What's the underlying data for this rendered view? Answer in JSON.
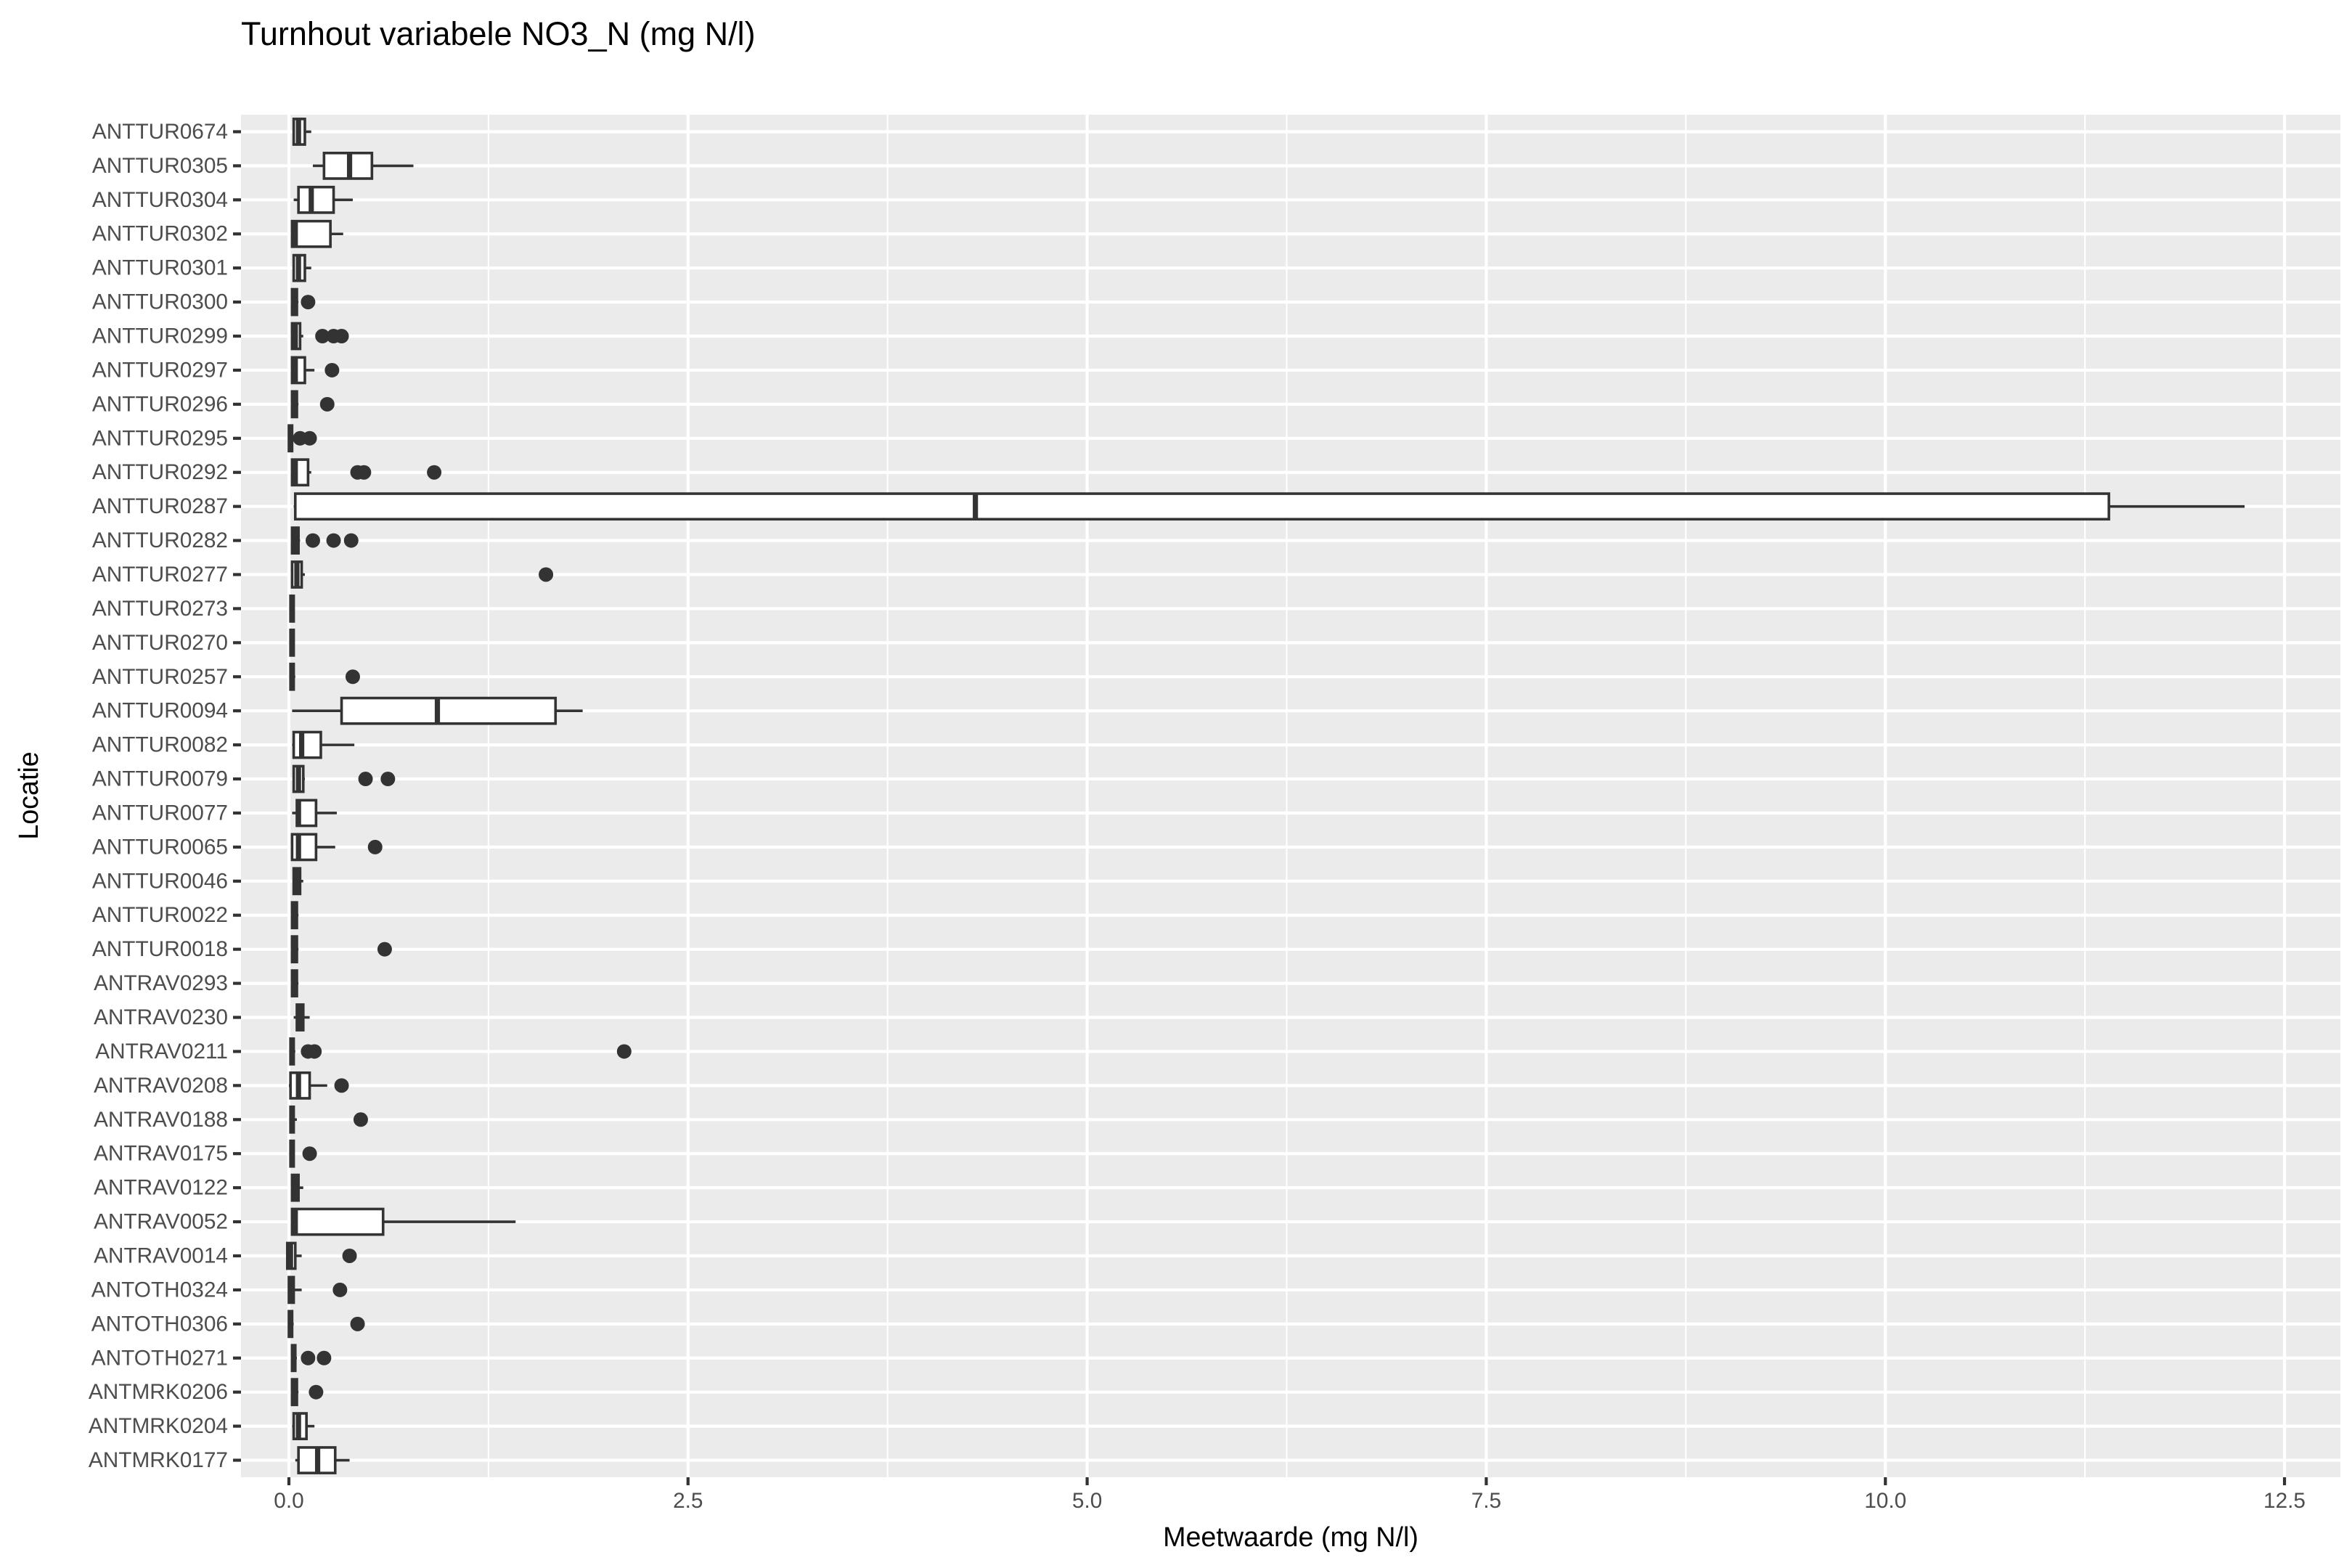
{
  "chart_data": {
    "type": "boxplot",
    "title": "Turnhout variabele NO3_N (mg N/l)",
    "xlabel": "Meetwaarde (mg N/l)",
    "ylabel": "Locatie",
    "xlim": [
      -0.3,
      12.85
    ],
    "xticks": [
      0.0,
      2.5,
      5.0,
      7.5,
      10.0,
      12.5
    ],
    "xtick_labels": [
      "0.0",
      "2.5",
      "5.0",
      "7.5",
      "10.0",
      "12.5"
    ],
    "grid": true,
    "colors": {
      "panel": "#EBEBEB",
      "grid": "#FFFFFF",
      "box_line": "#333333",
      "box_fill": "#FFFFFF"
    },
    "categories": [
      "ANTTUR0674",
      "ANTTUR0305",
      "ANTTUR0304",
      "ANTTUR0302",
      "ANTTUR0301",
      "ANTTUR0300",
      "ANTTUR0299",
      "ANTTUR0297",
      "ANTTUR0296",
      "ANTTUR0295",
      "ANTTUR0292",
      "ANTTUR0287",
      "ANTTUR0282",
      "ANTTUR0277",
      "ANTTUR0273",
      "ANTTUR0270",
      "ANTTUR0257",
      "ANTTUR0094",
      "ANTTUR0082",
      "ANTTUR0079",
      "ANTTUR0077",
      "ANTTUR0065",
      "ANTTUR0046",
      "ANTTUR0022",
      "ANTTUR0018",
      "ANTRAV0293",
      "ANTRAV0230",
      "ANTRAV0211",
      "ANTRAV0208",
      "ANTRAV0188",
      "ANTRAV0175",
      "ANTRAV0122",
      "ANTRAV0052",
      "ANTRAV0014",
      "ANTOTH0324",
      "ANTOTH0306",
      "ANTOTH0271",
      "ANTMRK0206",
      "ANTMRK0204",
      "ANTMRK0177"
    ],
    "boxes": [
      {
        "location": "ANTTUR0674",
        "min": 0.03,
        "q1": 0.03,
        "median": 0.06,
        "q3": 0.1,
        "max": 0.14,
        "outliers": []
      },
      {
        "location": "ANTTUR0305",
        "min": 0.15,
        "q1": 0.22,
        "median": 0.38,
        "q3": 0.52,
        "max": 0.78,
        "outliers": []
      },
      {
        "location": "ANTTUR0304",
        "min": 0.03,
        "q1": 0.06,
        "median": 0.14,
        "q3": 0.28,
        "max": 0.4,
        "outliers": []
      },
      {
        "location": "ANTTUR0302",
        "min": 0.02,
        "q1": 0.02,
        "median": 0.04,
        "q3": 0.26,
        "max": 0.34,
        "outliers": []
      },
      {
        "location": "ANTTUR0301",
        "min": 0.03,
        "q1": 0.03,
        "median": 0.06,
        "q3": 0.1,
        "max": 0.14,
        "outliers": []
      },
      {
        "location": "ANTTUR0300",
        "min": 0.02,
        "q1": 0.02,
        "median": 0.03,
        "q3": 0.05,
        "max": 0.06,
        "outliers": [
          0.12
        ]
      },
      {
        "location": "ANTTUR0299",
        "min": 0.02,
        "q1": 0.02,
        "median": 0.04,
        "q3": 0.07,
        "max": 0.09,
        "outliers": [
          0.21,
          0.28,
          0.33
        ]
      },
      {
        "location": "ANTTUR0297",
        "min": 0.02,
        "q1": 0.02,
        "median": 0.04,
        "q3": 0.1,
        "max": 0.16,
        "outliers": [
          0.27
        ]
      },
      {
        "location": "ANTTUR0296",
        "min": 0.02,
        "q1": 0.02,
        "median": 0.03,
        "q3": 0.05,
        "max": 0.06,
        "outliers": [
          0.24
        ]
      },
      {
        "location": "ANTTUR0295",
        "min": 0.0,
        "q1": 0.0,
        "median": 0.01,
        "q3": 0.02,
        "max": 0.02,
        "outliers": [
          0.07,
          0.13
        ]
      },
      {
        "location": "ANTTUR0292",
        "min": 0.02,
        "q1": 0.02,
        "median": 0.04,
        "q3": 0.12,
        "max": 0.14,
        "outliers": [
          0.43,
          0.47,
          0.91
        ]
      },
      {
        "location": "ANTTUR0287",
        "min": 0.03,
        "q1": 0.04,
        "median": 4.3,
        "q3": 11.4,
        "max": 12.25,
        "outliers": []
      },
      {
        "location": "ANTTUR0282",
        "min": 0.02,
        "q1": 0.02,
        "median": 0.04,
        "q3": 0.06,
        "max": 0.07,
        "outliers": [
          0.15,
          0.28,
          0.39
        ]
      },
      {
        "location": "ANTTUR0277",
        "min": 0.02,
        "q1": 0.02,
        "median": 0.05,
        "q3": 0.08,
        "max": 0.1,
        "outliers": [
          1.61
        ]
      },
      {
        "location": "ANTTUR0273",
        "min": 0.01,
        "q1": 0.01,
        "median": 0.02,
        "q3": 0.03,
        "max": 0.03,
        "outliers": []
      },
      {
        "location": "ANTTUR0270",
        "min": 0.01,
        "q1": 0.01,
        "median": 0.02,
        "q3": 0.03,
        "max": 0.03,
        "outliers": []
      },
      {
        "location": "ANTTUR0257",
        "min": 0.01,
        "q1": 0.01,
        "median": 0.02,
        "q3": 0.03,
        "max": 0.04,
        "outliers": [
          0.4
        ]
      },
      {
        "location": "ANTTUR0094",
        "min": 0.02,
        "q1": 0.33,
        "median": 0.93,
        "q3": 1.67,
        "max": 1.84,
        "outliers": []
      },
      {
        "location": "ANTTUR0082",
        "min": 0.02,
        "q1": 0.03,
        "median": 0.08,
        "q3": 0.2,
        "max": 0.41,
        "outliers": []
      },
      {
        "location": "ANTTUR0079",
        "min": 0.03,
        "q1": 0.03,
        "median": 0.06,
        "q3": 0.09,
        "max": 0.1,
        "outliers": [
          0.48,
          0.62
        ]
      },
      {
        "location": "ANTTUR0077",
        "min": 0.02,
        "q1": 0.05,
        "median": 0.06,
        "q3": 0.17,
        "max": 0.3,
        "outliers": []
      },
      {
        "location": "ANTTUR0065",
        "min": 0.02,
        "q1": 0.02,
        "median": 0.06,
        "q3": 0.17,
        "max": 0.29,
        "outliers": [
          0.54
        ]
      },
      {
        "location": "ANTTUR0046",
        "min": 0.03,
        "q1": 0.03,
        "median": 0.05,
        "q3": 0.07,
        "max": 0.09,
        "outliers": []
      },
      {
        "location": "ANTTUR0022",
        "min": 0.02,
        "q1": 0.02,
        "median": 0.04,
        "q3": 0.05,
        "max": 0.06,
        "outliers": []
      },
      {
        "location": "ANTTUR0018",
        "min": 0.02,
        "q1": 0.02,
        "median": 0.03,
        "q3": 0.05,
        "max": 0.06,
        "outliers": [
          0.6
        ]
      },
      {
        "location": "ANTRAV0293",
        "min": 0.02,
        "q1": 0.02,
        "median": 0.03,
        "q3": 0.05,
        "max": 0.06,
        "outliers": []
      },
      {
        "location": "ANTRAV0230",
        "min": 0.03,
        "q1": 0.05,
        "median": 0.07,
        "q3": 0.09,
        "max": 0.13,
        "outliers": []
      },
      {
        "location": "ANTRAV0211",
        "min": 0.01,
        "q1": 0.01,
        "median": 0.02,
        "q3": 0.03,
        "max": 0.04,
        "outliers": [
          0.12,
          0.16,
          2.1
        ]
      },
      {
        "location": "ANTRAV0208",
        "min": 0.0,
        "q1": 0.01,
        "median": 0.06,
        "q3": 0.13,
        "max": 0.24,
        "outliers": [
          0.33
        ]
      },
      {
        "location": "ANTRAV0188",
        "min": 0.01,
        "q1": 0.01,
        "median": 0.02,
        "q3": 0.03,
        "max": 0.05,
        "outliers": [
          0.45
        ]
      },
      {
        "location": "ANTRAV0175",
        "min": 0.01,
        "q1": 0.01,
        "median": 0.02,
        "q3": 0.03,
        "max": 0.03,
        "outliers": [
          0.13
        ]
      },
      {
        "location": "ANTRAV0122",
        "min": 0.02,
        "q1": 0.02,
        "median": 0.04,
        "q3": 0.06,
        "max": 0.09,
        "outliers": []
      },
      {
        "location": "ANTRAV0052",
        "min": 0.02,
        "q1": 0.02,
        "median": 0.04,
        "q3": 0.59,
        "max": 1.42,
        "outliers": []
      },
      {
        "location": "ANTRAV0014",
        "min": -0.01,
        "q1": -0.01,
        "median": 0.01,
        "q3": 0.04,
        "max": 0.08,
        "outliers": [
          0.38
        ]
      },
      {
        "location": "ANTOTH0324",
        "min": 0.0,
        "q1": 0.0,
        "median": 0.02,
        "q3": 0.03,
        "max": 0.08,
        "outliers": [
          0.32
        ]
      },
      {
        "location": "ANTOTH0306",
        "min": 0.0,
        "q1": 0.0,
        "median": 0.01,
        "q3": 0.02,
        "max": 0.03,
        "outliers": [
          0.43
        ]
      },
      {
        "location": "ANTOTH0271",
        "min": 0.02,
        "q1": 0.02,
        "median": 0.03,
        "q3": 0.04,
        "max": 0.05,
        "outliers": [
          0.12,
          0.22
        ]
      },
      {
        "location": "ANTMRK0206",
        "min": 0.02,
        "q1": 0.02,
        "median": 0.03,
        "q3": 0.05,
        "max": 0.06,
        "outliers": [
          0.17
        ]
      },
      {
        "location": "ANTMRK0204",
        "min": 0.02,
        "q1": 0.03,
        "median": 0.06,
        "q3": 0.11,
        "max": 0.16,
        "outliers": []
      },
      {
        "location": "ANTMRK0177",
        "min": 0.04,
        "q1": 0.06,
        "median": 0.18,
        "q3": 0.29,
        "max": 0.38,
        "outliers": []
      }
    ]
  }
}
